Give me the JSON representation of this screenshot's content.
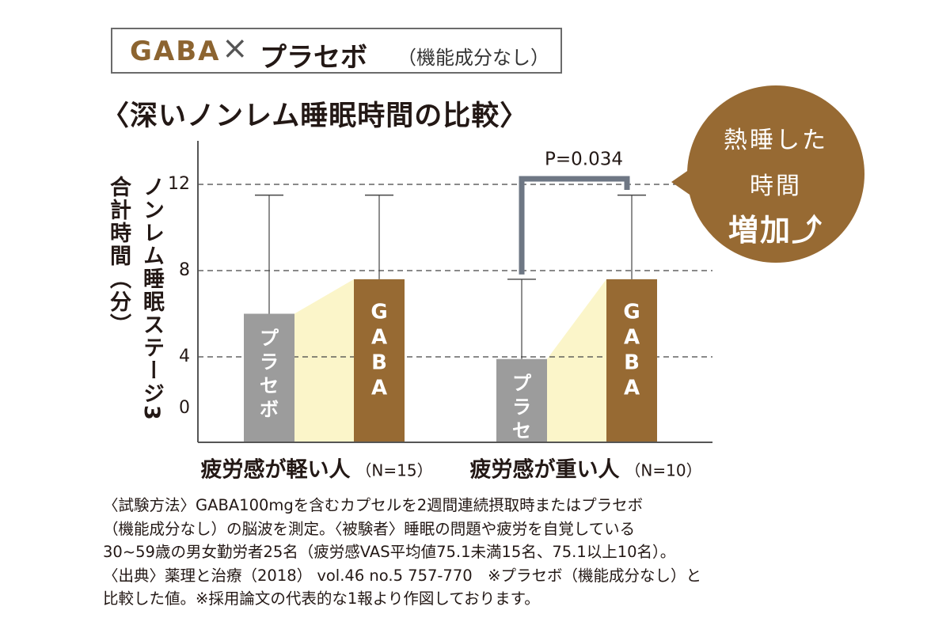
{
  "header": {
    "gaba": "GABA",
    "cross": "×",
    "placebo": "プラセボ",
    "note": "（機能成分なし）"
  },
  "subtitle": "〈深いノンレム睡眠時間の比較〉",
  "ylabel": {
    "line1": "ノンレム睡眠ステージ3",
    "line2": "合計時間（分）"
  },
  "callout": {
    "line1": "熱睡した",
    "line2": "時間",
    "line3": "増加⤴"
  },
  "chart_data": {
    "type": "bar",
    "title": "〈深いノンレム睡眠時間の比較〉",
    "ylabel": "ノンレム睡眠ステージ3合計時間（分）",
    "ylim": [
      0,
      13
    ],
    "yticks": [
      0,
      4,
      8,
      12
    ],
    "grid": "dashed at 4, 8, 12",
    "groups": [
      {
        "label": "疲労感が軽い人",
        "n_label": "（N=15）",
        "bars": [
          {
            "name": "プラセボ",
            "value": 6.0,
            "error_upper": 11.5,
            "color": "#9c9c9c"
          },
          {
            "name": "GABA",
            "value": 7.6,
            "error_upper": 11.5,
            "color": "#976a33"
          }
        ]
      },
      {
        "label": "疲労感が重い人",
        "n_label": "（N=10）",
        "bars": [
          {
            "name": "プラセボ",
            "value": 3.9,
            "error_upper": 7.6,
            "color": "#9c9c9c"
          },
          {
            "name": "GABA",
            "value": 7.6,
            "error_upper": 11.5,
            "color": "#976a33"
          }
        ]
      }
    ],
    "annotation": "P=0.034"
  },
  "footnote": [
    "〈試験方法〉GABA100mgを含むカプセルを2週間連続摂取時またはプラセボ",
    "（機能成分なし）の脳波を測定。〈被験者〉睡眠の問題や疲労を自覚している",
    "30~59歳の男女勤労者25名（疲労感VAS平均値75.1未満15名、75.1以上10名）。",
    "〈出典〉薬理と治療（2018） vol.46 no.5 757-770　※プラセボ（機能成分なし）と",
    "比較した値。※採用論文の代表的な1報より作図しております。"
  ],
  "colors": {
    "gaba": "#976a33",
    "placebo": "#9c9c9c",
    "connector": "#fbf5c9",
    "bracket": "#6e7784"
  }
}
